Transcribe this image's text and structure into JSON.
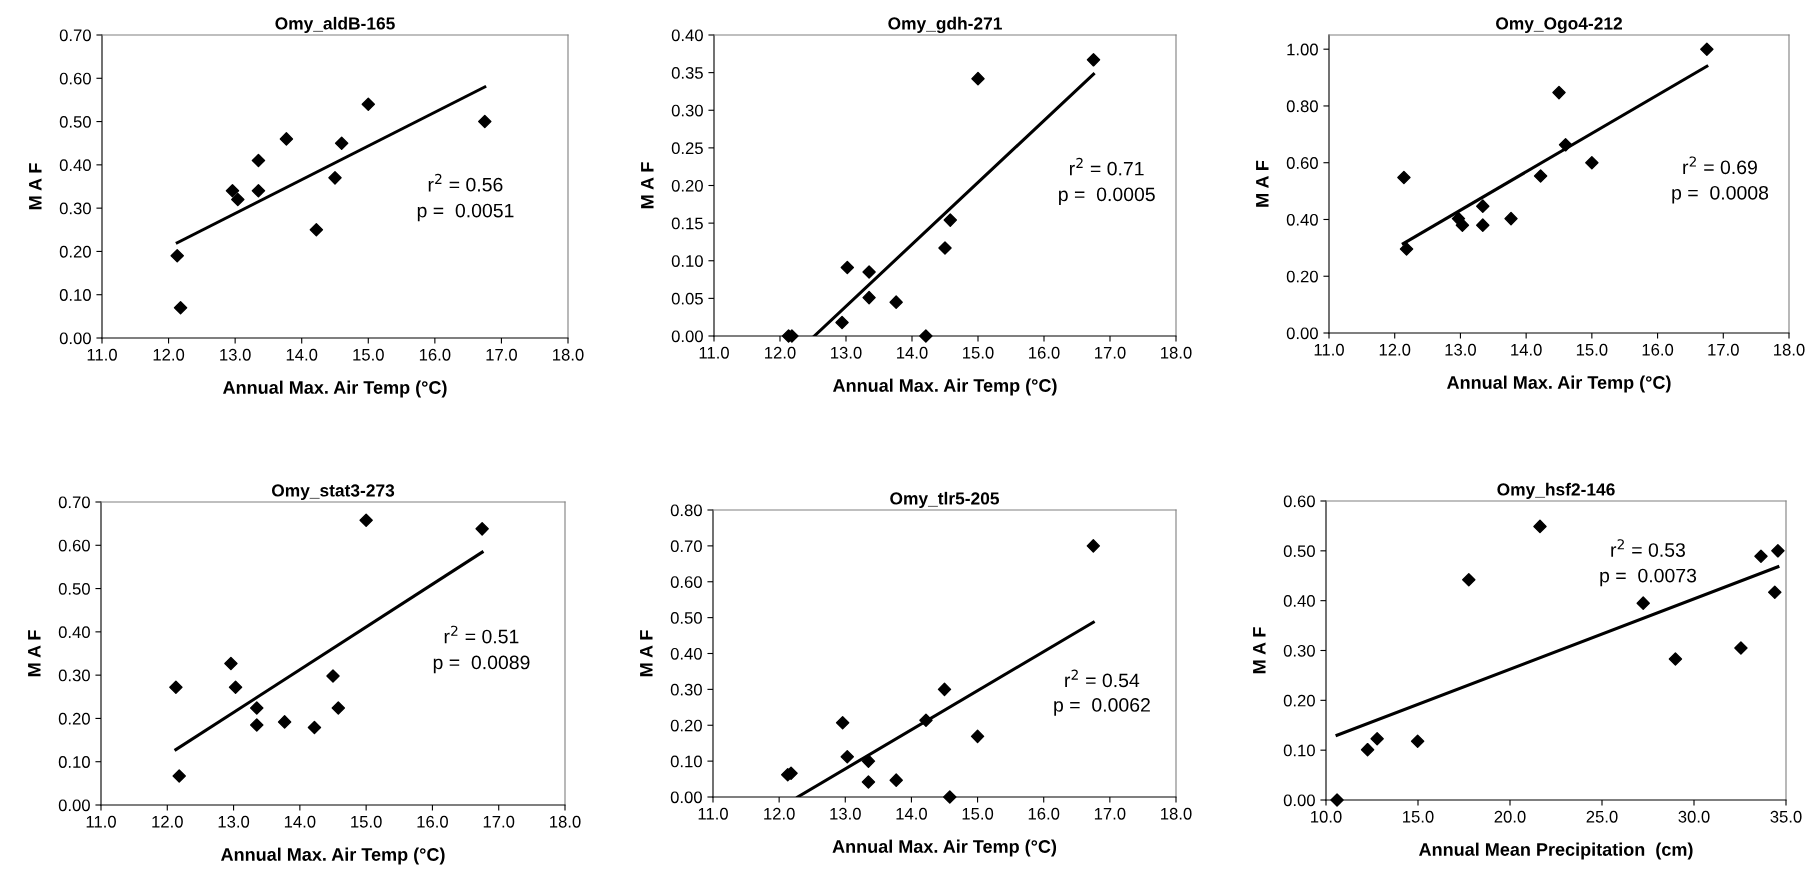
{
  "chart_data": [
    {
      "type": "scatter",
      "title": "Omy_aldB-165",
      "xlabel": "Annual Max. Air Temp (°C)",
      "ylabel": "M A F",
      "xlim": [
        11.0,
        18.0
      ],
      "xticks": [
        {
          "value": 11,
          "label": "11.0"
        },
        {
          "value": 12,
          "label": "12.0"
        },
        {
          "value": 13,
          "label": "13.0"
        },
        {
          "value": 14,
          "label": "14.0"
        },
        {
          "value": 15,
          "label": "15.0"
        },
        {
          "value": 16,
          "label": "16.0"
        },
        {
          "value": 17,
          "label": "17.0"
        },
        {
          "value": 18,
          "label": "18.0"
        }
      ],
      "ylim": [
        0,
        0.7
      ],
      "yticks": [
        {
          "value": 0,
          "label": "0.00"
        },
        {
          "value": 0.1,
          "label": "0.10"
        },
        {
          "value": 0.2,
          "label": "0.20"
        },
        {
          "value": 0.3,
          "label": "0.30"
        },
        {
          "value": 0.4,
          "label": "0.40"
        },
        {
          "value": 0.5,
          "label": "0.50"
        },
        {
          "value": 0.6,
          "label": "0.60"
        },
        {
          "value": 0.7,
          "label": "0.70"
        }
      ],
      "grid": false,
      "legend": false,
      "marker": "diamond",
      "annotations": [
        "r$^{2}$ = 0.56",
        "p =  0.0051"
      ],
      "series": [
        {
          "color": "#000000",
          "x": [
            12.13,
            12.18,
            12.96,
            13.04,
            13.35,
            13.35,
            13.77,
            14.22,
            14.5,
            14.6,
            15.0,
            16.75
          ],
          "values": [
            0.19,
            0.07,
            0.34,
            0.32,
            0.41,
            0.34,
            0.46,
            0.25,
            0.37,
            0.45,
            0.54,
            0.5
          ]
        },
        {
          "type": "line",
          "marker": "none",
          "color": "#000000",
          "x": [
            12.13,
            16.75
          ],
          "values": [
            0.22,
            0.58
          ]
        }
      ]
    },
    {
      "type": "scatter",
      "title": "Omy_gdh-271",
      "xlabel": "Annual Max. Air Temp (°C)",
      "ylabel": "M A F",
      "xlim": [
        11.0,
        18.0
      ],
      "xticks": [
        {
          "value": 11,
          "label": "11.0"
        },
        {
          "value": 12,
          "label": "12.0"
        },
        {
          "value": 13,
          "label": "13.0"
        },
        {
          "value": 14,
          "label": "14.0"
        },
        {
          "value": 15,
          "label": "15.0"
        },
        {
          "value": 16,
          "label": "16.0"
        },
        {
          "value": 17,
          "label": "17.0"
        },
        {
          "value": 18,
          "label": "18.0"
        }
      ],
      "ylim": [
        0,
        0.4
      ],
      "yticks": [
        {
          "value": 0,
          "label": "0.00"
        },
        {
          "value": 0.05,
          "label": "0.05"
        },
        {
          "value": 0.1,
          "label": "0.10"
        },
        {
          "value": 0.15,
          "label": "0.15"
        },
        {
          "value": 0.2,
          "label": "0.20"
        },
        {
          "value": 0.25,
          "label": "0.25"
        },
        {
          "value": 0.3,
          "label": "0.30"
        },
        {
          "value": 0.35,
          "label": "0.35"
        },
        {
          "value": 0.4,
          "label": "0.40"
        }
      ],
      "grid": false,
      "legend": false,
      "marker": "diamond",
      "annotations": [
        "r$^{2}$ = 0.71",
        "p =  0.0005"
      ],
      "series": [
        {
          "color": "#000000",
          "x": [
            12.13,
            12.18,
            12.94,
            13.02,
            13.35,
            13.35,
            13.76,
            14.21,
            14.5,
            14.58,
            15.0,
            16.75
          ],
          "values": [
            0,
            0,
            0.018,
            0.091,
            0.051,
            0.085,
            0.045,
            0,
            0.117,
            0.154,
            0.342,
            0.367
          ]
        },
        {
          "type": "line",
          "marker": "none",
          "color": "#000000",
          "x": [
            12.52,
            16.75
          ],
          "values": [
            0,
            0.348
          ]
        }
      ]
    },
    {
      "type": "scatter",
      "title": "Omy_Ogo4-212",
      "xlabel": "Annual Max. Air Temp (°C)",
      "ylabel": "M A F",
      "xlim": [
        11.0,
        18.0
      ],
      "xticks": [
        {
          "value": 11,
          "label": "11.0"
        },
        {
          "value": 12,
          "label": "12.0"
        },
        {
          "value": 13,
          "label": "13.0"
        },
        {
          "value": 14,
          "label": "14.0"
        },
        {
          "value": 15,
          "label": "15.0"
        },
        {
          "value": 16,
          "label": "16.0"
        },
        {
          "value": 17,
          "label": "17.0"
        },
        {
          "value": 18,
          "label": "18.0"
        }
      ],
      "ylim": [
        0,
        1.05
      ],
      "yticks": [
        {
          "value": 0,
          "label": "0.00"
        },
        {
          "value": 0.2,
          "label": "0.20"
        },
        {
          "value": 0.4,
          "label": "0.40"
        },
        {
          "value": 0.6,
          "label": "0.60"
        },
        {
          "value": 0.8,
          "label": "0.80"
        },
        {
          "value": 1.0,
          "label": "1.00"
        }
      ],
      "grid": false,
      "legend": false,
      "marker": "diamond",
      "annotations": [
        "r$^{2}$ = 0.69",
        "p =  0.0008"
      ],
      "series": [
        {
          "color": "#000000",
          "x": [
            12.14,
            12.18,
            12.97,
            13.03,
            13.34,
            13.34,
            13.77,
            14.22,
            14.5,
            14.6,
            15.0,
            16.75
          ],
          "values": [
            0.548,
            0.296,
            0.403,
            0.38,
            0.447,
            0.38,
            0.403,
            0.553,
            0.847,
            0.663,
            0.6,
            1.0
          ]
        },
        {
          "type": "line",
          "marker": "none",
          "color": "#000000",
          "x": [
            12.13,
            16.75
          ],
          "values": [
            0.315,
            0.94
          ]
        }
      ]
    },
    {
      "type": "scatter",
      "title": "Omy_stat3-273",
      "xlabel": "Annual Max. Air Temp (°C)",
      "ylabel": "M A F",
      "xlim": [
        11.0,
        18.0
      ],
      "xticks": [
        {
          "value": 11,
          "label": "11.0"
        },
        {
          "value": 12,
          "label": "12.0"
        },
        {
          "value": 13,
          "label": "13.0"
        },
        {
          "value": 14,
          "label": "14.0"
        },
        {
          "value": 15,
          "label": "15.0"
        },
        {
          "value": 16,
          "label": "16.0"
        },
        {
          "value": 17,
          "label": "17.0"
        },
        {
          "value": 18,
          "label": "18.0"
        }
      ],
      "ylim": [
        0,
        0.7
      ],
      "yticks": [
        {
          "value": 0,
          "label": "0.00"
        },
        {
          "value": 0.1,
          "label": "0.10"
        },
        {
          "value": 0.2,
          "label": "0.20"
        },
        {
          "value": 0.3,
          "label": "0.30"
        },
        {
          "value": 0.4,
          "label": "0.40"
        },
        {
          "value": 0.5,
          "label": "0.50"
        },
        {
          "value": 0.6,
          "label": "0.60"
        },
        {
          "value": 0.7,
          "label": "0.70"
        }
      ],
      "grid": false,
      "legend": false,
      "marker": "diamond",
      "annotations": [
        "r$^{2}$ = 0.51",
        "p =  0.0089"
      ],
      "series": [
        {
          "color": "#000000",
          "x": [
            12.13,
            12.18,
            12.96,
            13.03,
            13.35,
            13.35,
            13.77,
            14.22,
            14.5,
            14.58,
            15.0,
            16.75
          ],
          "values": [
            0.272,
            0.067,
            0.327,
            0.272,
            0.224,
            0.185,
            0.192,
            0.179,
            0.298,
            0.224,
            0.658,
            0.638
          ]
        },
        {
          "type": "line",
          "marker": "none",
          "color": "#000000",
          "x": [
            12.13,
            16.75
          ],
          "values": [
            0.128,
            0.584
          ]
        }
      ]
    },
    {
      "type": "scatter",
      "title": "Omy_tlr5-205",
      "xlabel": "Annual Max. Air Temp (°C)",
      "ylabel": "M A F",
      "xlim": [
        11.0,
        18.0
      ],
      "xticks": [
        {
          "value": 11,
          "label": "11.0"
        },
        {
          "value": 12,
          "label": "12.0"
        },
        {
          "value": 13,
          "label": "13.0"
        },
        {
          "value": 14,
          "label": "14.0"
        },
        {
          "value": 15,
          "label": "15.0"
        },
        {
          "value": 16,
          "label": "16.0"
        },
        {
          "value": 17,
          "label": "17.0"
        },
        {
          "value": 18,
          "label": "18.0"
        }
      ],
      "ylim": [
        0,
        0.8
      ],
      "yticks": [
        {
          "value": 0,
          "label": "0.00"
        },
        {
          "value": 0.1,
          "label": "0.10"
        },
        {
          "value": 0.2,
          "label": "0.20"
        },
        {
          "value": 0.3,
          "label": "0.30"
        },
        {
          "value": 0.4,
          "label": "0.40"
        },
        {
          "value": 0.5,
          "label": "0.50"
        },
        {
          "value": 0.6,
          "label": "0.60"
        },
        {
          "value": 0.7,
          "label": "0.70"
        },
        {
          "value": 0.8,
          "label": "0.80"
        }
      ],
      "grid": false,
      "legend": false,
      "marker": "diamond",
      "annotations": [
        "r$^{2}$ = 0.54",
        "p =  0.0062"
      ],
      "series": [
        {
          "color": "#000000",
          "x": [
            12.13,
            12.18,
            12.96,
            13.03,
            13.35,
            13.35,
            13.77,
            14.22,
            14.5,
            14.58,
            15.0,
            16.75
          ],
          "values": [
            0.062,
            0.066,
            0.207,
            0.112,
            0.1,
            0.042,
            0.047,
            0.214,
            0.3,
            0,
            0.169,
            0.7
          ]
        },
        {
          "type": "line",
          "marker": "none",
          "color": "#000000",
          "x": [
            12.28,
            16.75
          ],
          "values": [
            0,
            0.487
          ]
        }
      ]
    },
    {
      "type": "scatter",
      "title": "Omy_hsf2-146",
      "xlabel": "Annual Mean Precipitation  (cm)",
      "ylabel": "M A F",
      "xlim": [
        10.0,
        35.0
      ],
      "xticks": [
        {
          "value": 10,
          "label": "10.0"
        },
        {
          "value": 15,
          "label": "15.0"
        },
        {
          "value": 20,
          "label": "20.0"
        },
        {
          "value": 25,
          "label": "25.0"
        },
        {
          "value": 30,
          "label": "30.0"
        },
        {
          "value": 35,
          "label": "35.0"
        }
      ],
      "ylim": [
        0,
        0.6
      ],
      "yticks": [
        {
          "value": 0,
          "label": "0.00"
        },
        {
          "value": 0.1,
          "label": "0.10"
        },
        {
          "value": 0.2,
          "label": "0.20"
        },
        {
          "value": 0.3,
          "label": "0.30"
        },
        {
          "value": 0.4,
          "label": "0.40"
        },
        {
          "value": 0.5,
          "label": "0.50"
        },
        {
          "value": 0.6,
          "label": "0.60"
        }
      ],
      "grid": false,
      "legend": false,
      "marker": "diamond",
      "annotations": [
        "r$^{2}$ = 0.53",
        "p =  0.0073"
      ],
      "series": [
        {
          "color": "#000000",
          "x": [
            10.6,
            12.26,
            12.78,
            14.98,
            17.76,
            21.63,
            27.24,
            28.99,
            32.55,
            33.64,
            34.39,
            34.56
          ],
          "values": [
            0,
            0.101,
            0.123,
            0.118,
            0.442,
            0.549,
            0.395,
            0.283,
            0.305,
            0.489,
            0.417,
            0.5
          ]
        },
        {
          "type": "line",
          "marker": "none",
          "color": "#000000",
          "x": [
            10.6,
            34.56
          ],
          "values": [
            0.13,
            0.468
          ]
        }
      ]
    }
  ]
}
